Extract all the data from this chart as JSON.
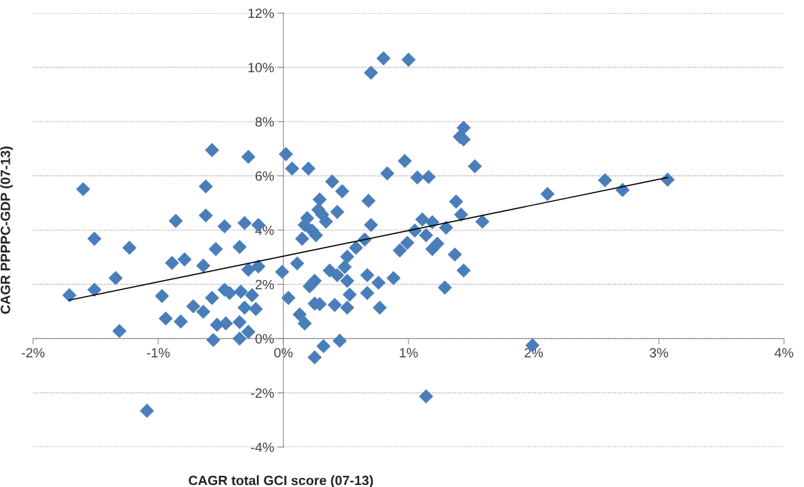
{
  "chart_data": {
    "type": "scatter",
    "xlabel": "CAGR total GCI score (07-13)",
    "ylabel": "CAGR PPPPC-GDP (07-13)",
    "xlim": [
      -2,
      4
    ],
    "xticks": [
      {
        "value": -2,
        "label": "-2%"
      },
      {
        "value": -1,
        "label": "-1%"
      },
      {
        "value": 0,
        "label": "0%"
      },
      {
        "value": 1,
        "label": "1%"
      },
      {
        "value": 2,
        "label": "2%"
      },
      {
        "value": 3,
        "label": "3%"
      },
      {
        "value": 4,
        "label": "4%"
      }
    ],
    "ylim": [
      -4,
      12
    ],
    "yticks": [
      {
        "value": -4,
        "label": "-4%"
      },
      {
        "value": -2,
        "label": "-2%"
      },
      {
        "value": 0,
        "label": "0%"
      },
      {
        "value": 2,
        "label": "2%"
      },
      {
        "value": 4,
        "label": "4%"
      },
      {
        "value": 6,
        "label": "6%"
      },
      {
        "value": 8,
        "label": "8%"
      },
      {
        "value": 10,
        "label": "10%"
      },
      {
        "value": 12,
        "label": "12%"
      }
    ],
    "grid": "y",
    "series": [
      {
        "color": "#4a7ebb",
        "marker": "diamond",
        "x": [
          0.02,
          0.07,
          0.2,
          0.39,
          0.47,
          0.29,
          0.28,
          0.31,
          0.34,
          0.43,
          0.19,
          0.17,
          0.23,
          0.26,
          0.15,
          0.11,
          -0.01,
          0.04,
          0.13,
          0.17,
          0.21,
          0.23,
          0.25,
          0.25,
          0.29,
          0.25,
          0.32,
          0.45,
          0.37,
          0.43,
          0.41,
          0.51,
          0.53,
          0.51,
          0.49,
          0.51,
          0.58,
          0.65,
          0.68,
          0.7,
          0.67,
          0.67,
          0.76,
          0.77,
          0.7,
          0.8,
          1.0,
          0.83,
          0.88,
          0.93,
          0.99,
          0.97,
          1.07,
          1.16,
          1.05,
          1.11,
          1.14,
          1.19,
          1.19,
          1.23,
          1.3,
          1.29,
          1.38,
          1.42,
          1.37,
          1.44,
          1.41,
          1.44,
          1.44,
          1.53,
          1.59,
          -1.71,
          -1.6,
          -1.51,
          -1.51,
          -1.34,
          -1.31,
          -1.23,
          -1.09,
          -0.97,
          -0.94,
          -0.89,
          -0.86,
          -0.82,
          -0.79,
          -0.72,
          -0.64,
          -0.64,
          -0.62,
          -0.62,
          -0.57,
          -0.57,
          -0.56,
          -0.54,
          -0.53,
          -0.47,
          -0.47,
          -0.46,
          -0.43,
          -0.35,
          -0.34,
          -0.35,
          -0.35,
          -0.31,
          -0.31,
          -0.28,
          -0.28,
          -0.28,
          -0.25,
          -0.22,
          -0.2,
          -0.2,
          2.11,
          2.57,
          2.71,
          3.07,
          1.99,
          1.14
        ],
        "values": [
          6.8,
          6.27,
          6.27,
          5.79,
          5.43,
          5.13,
          4.75,
          4.57,
          4.31,
          4.67,
          4.44,
          4.19,
          3.98,
          3.81,
          3.68,
          2.77,
          2.46,
          1.5,
          0.89,
          0.56,
          1.93,
          2.03,
          2.13,
          1.29,
          1.27,
          -0.69,
          -0.28,
          -0.08,
          2.51,
          2.34,
          1.24,
          1.14,
          1.62,
          2.13,
          2.64,
          3.02,
          3.35,
          3.65,
          5.08,
          4.19,
          2.34,
          1.68,
          2.06,
          1.14,
          9.8,
          10.33,
          10.28,
          6.09,
          2.23,
          3.25,
          3.53,
          6.55,
          5.94,
          5.96,
          3.98,
          4.39,
          3.81,
          4.29,
          3.3,
          3.5,
          4.09,
          1.88,
          5.05,
          4.57,
          3.1,
          2.51,
          7.44,
          7.34,
          7.77,
          6.35,
          4.31,
          1.6,
          5.51,
          3.68,
          1.8,
          2.23,
          0.28,
          3.35,
          -2.66,
          1.57,
          0.74,
          2.79,
          4.34,
          0.63,
          2.92,
          1.19,
          0.99,
          2.69,
          5.61,
          4.54,
          6.95,
          1.5,
          -0.05,
          3.3,
          0.51,
          4.14,
          1.8,
          0.56,
          1.68,
          3.38,
          1.73,
          0.61,
          0.0,
          4.26,
          1.14,
          6.7,
          2.54,
          0.25,
          1.6,
          1.09,
          4.19,
          2.66,
          5.33,
          5.84,
          5.48,
          5.86,
          -0.25,
          -2.13
        ]
      },
      {
        "type": "line",
        "color": "#000000",
        "marker": "none",
        "x": [
          -1.71,
          3.07
        ],
        "values": [
          1.42,
          5.94
        ]
      }
    ]
  }
}
